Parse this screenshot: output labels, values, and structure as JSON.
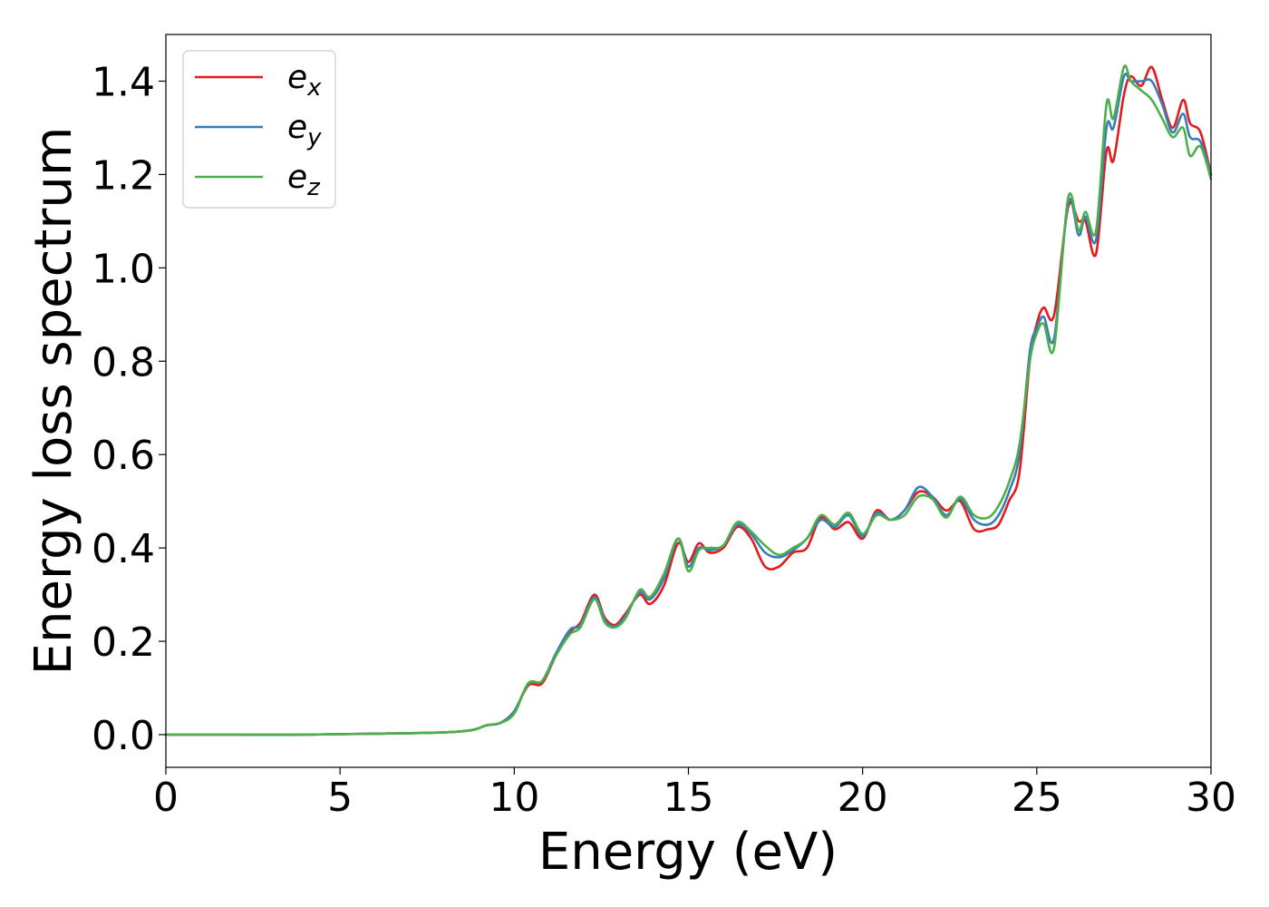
{
  "chart_data": {
    "type": "line",
    "title": "",
    "xlabel": "Energy (eV)",
    "ylabel": "Energy loss spectrum",
    "xlim": [
      0,
      30
    ],
    "ylim": [
      -0.07,
      1.5
    ],
    "xticks": [
      0,
      5,
      10,
      15,
      20,
      25,
      30
    ],
    "xtick_labels": [
      "0",
      "5",
      "10",
      "15",
      "20",
      "25",
      "30"
    ],
    "yticks": [
      0.0,
      0.2,
      0.4,
      0.6,
      0.8,
      1.0,
      1.2,
      1.4
    ],
    "ytick_labels": [
      "0.0",
      "0.2",
      "0.4",
      "0.6",
      "0.8",
      "1.0",
      "1.2",
      "1.4"
    ],
    "grid": false,
    "legend_position": "top-left",
    "series": [
      {
        "name": "e_x",
        "label_base": "e",
        "label_sub": "x",
        "color": "#e41a1c",
        "x": [
          0,
          2,
          4,
          6,
          8,
          8.8,
          9.2,
          9.6,
          10.0,
          10.4,
          10.8,
          11.2,
          11.6,
          11.9,
          12.3,
          12.6,
          12.9,
          13.2,
          13.6,
          13.9,
          14.3,
          14.7,
          15.0,
          15.3,
          15.6,
          16.0,
          16.4,
          16.8,
          17.2,
          17.6,
          18.0,
          18.4,
          18.8,
          19.2,
          19.6,
          20.0,
          20.4,
          20.8,
          21.2,
          21.6,
          22.0,
          22.4,
          22.8,
          23.2,
          23.6,
          23.9,
          24.2,
          24.5,
          24.8,
          25.0,
          25.2,
          25.5,
          25.9,
          26.2,
          26.4,
          26.7,
          27.0,
          27.2,
          27.5,
          27.7,
          28.0,
          28.3,
          28.6,
          28.9,
          29.2,
          29.4,
          29.7,
          30.0
        ],
        "y": [
          0.0,
          0.0,
          0.0,
          0.002,
          0.005,
          0.01,
          0.02,
          0.025,
          0.05,
          0.105,
          0.11,
          0.17,
          0.22,
          0.24,
          0.3,
          0.25,
          0.235,
          0.26,
          0.3,
          0.28,
          0.32,
          0.41,
          0.37,
          0.41,
          0.39,
          0.4,
          0.445,
          0.42,
          0.36,
          0.36,
          0.39,
          0.4,
          0.465,
          0.44,
          0.455,
          0.42,
          0.48,
          0.46,
          0.48,
          0.52,
          0.51,
          0.48,
          0.5,
          0.44,
          0.44,
          0.45,
          0.5,
          0.56,
          0.8,
          0.88,
          0.915,
          0.9,
          1.13,
          1.1,
          1.1,
          1.03,
          1.25,
          1.23,
          1.37,
          1.41,
          1.39,
          1.43,
          1.36,
          1.3,
          1.36,
          1.31,
          1.29,
          1.2
        ]
      },
      {
        "name": "e_y",
        "label_base": "e",
        "label_sub": "y",
        "color": "#377eb8",
        "x": [
          0,
          2,
          4,
          6,
          8,
          8.8,
          9.2,
          9.6,
          10.0,
          10.4,
          10.8,
          11.2,
          11.6,
          11.9,
          12.3,
          12.6,
          12.9,
          13.2,
          13.6,
          13.9,
          14.3,
          14.7,
          15.0,
          15.3,
          15.6,
          16.0,
          16.4,
          16.8,
          17.2,
          17.6,
          18.0,
          18.4,
          18.8,
          19.2,
          19.6,
          20.0,
          20.4,
          20.8,
          21.2,
          21.6,
          22.0,
          22.4,
          22.8,
          23.2,
          23.6,
          23.9,
          24.2,
          24.5,
          24.8,
          25.0,
          25.2,
          25.5,
          25.9,
          26.2,
          26.4,
          26.7,
          27.0,
          27.2,
          27.5,
          27.7,
          28.0,
          28.3,
          28.6,
          28.9,
          29.2,
          29.4,
          29.7,
          30.0
        ],
        "y": [
          0.0,
          0.0,
          0.0,
          0.002,
          0.005,
          0.01,
          0.02,
          0.025,
          0.05,
          0.108,
          0.115,
          0.175,
          0.225,
          0.235,
          0.295,
          0.245,
          0.232,
          0.255,
          0.305,
          0.29,
          0.335,
          0.42,
          0.36,
          0.4,
          0.395,
          0.405,
          0.45,
          0.43,
          0.39,
          0.38,
          0.395,
          0.42,
          0.46,
          0.445,
          0.47,
          0.425,
          0.475,
          0.46,
          0.48,
          0.53,
          0.51,
          0.47,
          0.505,
          0.46,
          0.45,
          0.47,
          0.52,
          0.6,
          0.82,
          0.87,
          0.895,
          0.85,
          1.14,
          1.07,
          1.11,
          1.06,
          1.3,
          1.3,
          1.41,
          1.4,
          1.4,
          1.4,
          1.35,
          1.29,
          1.33,
          1.28,
          1.27,
          1.2
        ]
      },
      {
        "name": "e_z",
        "label_base": "e",
        "label_sub": "z",
        "color": "#4daf4a",
        "x": [
          0,
          2,
          4,
          6,
          8,
          8.8,
          9.2,
          9.6,
          10.0,
          10.4,
          10.8,
          11.2,
          11.6,
          11.9,
          12.3,
          12.6,
          12.9,
          13.2,
          13.6,
          13.9,
          14.3,
          14.7,
          15.0,
          15.3,
          15.6,
          16.0,
          16.4,
          16.8,
          17.2,
          17.6,
          18.0,
          18.4,
          18.8,
          19.2,
          19.6,
          20.0,
          20.4,
          20.8,
          21.2,
          21.6,
          22.0,
          22.4,
          22.8,
          23.2,
          23.6,
          23.9,
          24.2,
          24.5,
          24.8,
          25.0,
          25.2,
          25.5,
          25.9,
          26.2,
          26.4,
          26.7,
          27.0,
          27.2,
          27.5,
          27.7,
          28.0,
          28.3,
          28.6,
          28.9,
          29.2,
          29.4,
          29.7,
          30.0
        ],
        "y": [
          0.0,
          0.0,
          0.0,
          0.002,
          0.005,
          0.01,
          0.02,
          0.025,
          0.045,
          0.11,
          0.115,
          0.17,
          0.215,
          0.23,
          0.29,
          0.24,
          0.23,
          0.25,
          0.31,
          0.295,
          0.345,
          0.42,
          0.35,
          0.395,
          0.4,
          0.405,
          0.455,
          0.435,
          0.405,
          0.385,
          0.4,
          0.42,
          0.47,
          0.45,
          0.475,
          0.43,
          0.47,
          0.46,
          0.47,
          0.51,
          0.505,
          0.465,
          0.51,
          0.47,
          0.465,
          0.49,
          0.54,
          0.62,
          0.8,
          0.86,
          0.88,
          0.83,
          1.15,
          1.08,
          1.12,
          1.08,
          1.35,
          1.32,
          1.43,
          1.4,
          1.38,
          1.36,
          1.32,
          1.28,
          1.3,
          1.24,
          1.26,
          1.19
        ]
      }
    ]
  }
}
